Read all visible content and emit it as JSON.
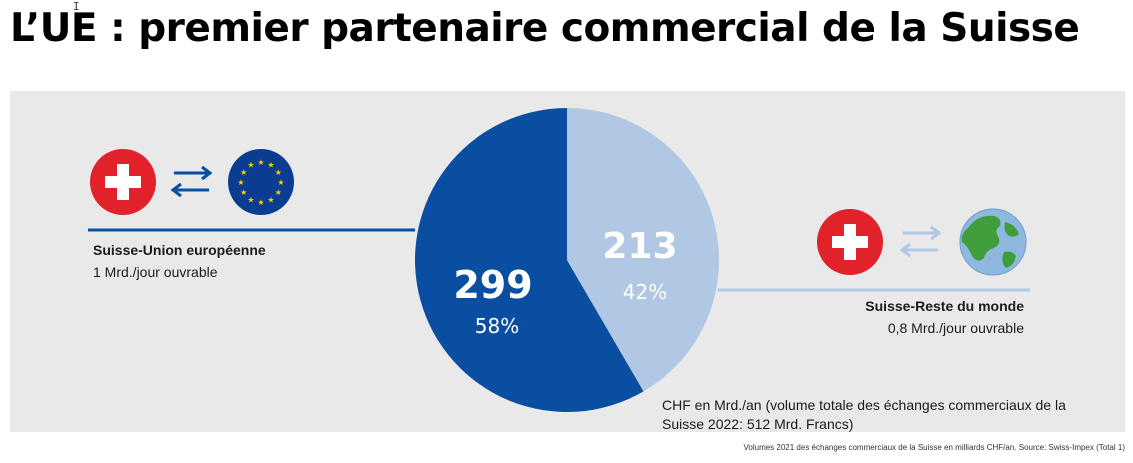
{
  "page": {
    "title": "L’UE : premier partenaire commercial de la Suisse"
  },
  "left_group": {
    "title": "Suisse-Union européenne",
    "subtitle": "1 Mrd./jour ouvrable",
    "icons": [
      "swiss-flag-icon",
      "exchange-arrows-icon",
      "eu-flag-icon"
    ]
  },
  "right_group": {
    "title": "Suisse-Reste du monde",
    "subtitle": "0,8 Mrd./jour ouvrable",
    "icons": [
      "swiss-flag-icon",
      "exchange-arrows-icon",
      "globe-icon"
    ]
  },
  "note": "CHF en Mrd./an (volume totale des échanges commerciaux de la Suisse 2022: 512 Mrd. Francs)",
  "source": "Volumes 2021 des échanges commerciaux de la Suisse en milliards CHF/an. Source: Swiss-Impex (Total 1)",
  "colors": {
    "eu": "#0a4ea2",
    "world": "#b0c8e3",
    "swiss_red": "#e2222b",
    "panel": "#e9e9ea"
  },
  "chart_data": {
    "type": "pie",
    "slices": [
      {
        "value": 299,
        "label": "299",
        "percent": "58%",
        "color": "#0a4ea2"
      },
      {
        "value": 213,
        "label": "213",
        "percent": "42%",
        "color": "#b0c8e3"
      }
    ]
  }
}
